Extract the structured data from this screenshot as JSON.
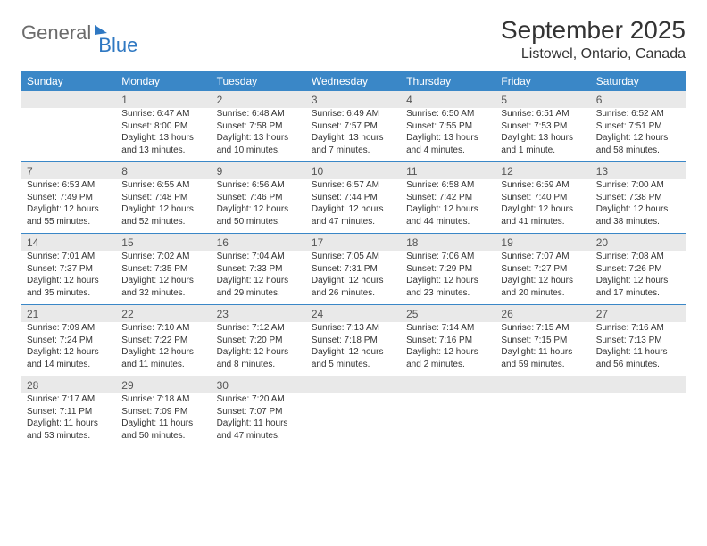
{
  "logo": {
    "part1": "General",
    "part2": "Blue"
  },
  "title": "September 2025",
  "location": "Listowel, Ontario, Canada",
  "colors": {
    "header_bg": "#3a87c7",
    "header_text": "#ffffff",
    "daynum_bg": "#e9e9e9",
    "rule": "#3a87c7",
    "logo_gray": "#6b6b6b",
    "logo_blue": "#2f78c2"
  },
  "daysOfWeek": [
    "Sunday",
    "Monday",
    "Tuesday",
    "Wednesday",
    "Thursday",
    "Friday",
    "Saturday"
  ],
  "weeks": [
    [
      null,
      {
        "n": "1",
        "sr": "Sunrise: 6:47 AM",
        "ss": "Sunset: 8:00 PM",
        "d1": "Daylight: 13 hours",
        "d2": "and 13 minutes."
      },
      {
        "n": "2",
        "sr": "Sunrise: 6:48 AM",
        "ss": "Sunset: 7:58 PM",
        "d1": "Daylight: 13 hours",
        "d2": "and 10 minutes."
      },
      {
        "n": "3",
        "sr": "Sunrise: 6:49 AM",
        "ss": "Sunset: 7:57 PM",
        "d1": "Daylight: 13 hours",
        "d2": "and 7 minutes."
      },
      {
        "n": "4",
        "sr": "Sunrise: 6:50 AM",
        "ss": "Sunset: 7:55 PM",
        "d1": "Daylight: 13 hours",
        "d2": "and 4 minutes."
      },
      {
        "n": "5",
        "sr": "Sunrise: 6:51 AM",
        "ss": "Sunset: 7:53 PM",
        "d1": "Daylight: 13 hours",
        "d2": "and 1 minute."
      },
      {
        "n": "6",
        "sr": "Sunrise: 6:52 AM",
        "ss": "Sunset: 7:51 PM",
        "d1": "Daylight: 12 hours",
        "d2": "and 58 minutes."
      }
    ],
    [
      {
        "n": "7",
        "sr": "Sunrise: 6:53 AM",
        "ss": "Sunset: 7:49 PM",
        "d1": "Daylight: 12 hours",
        "d2": "and 55 minutes."
      },
      {
        "n": "8",
        "sr": "Sunrise: 6:55 AM",
        "ss": "Sunset: 7:48 PM",
        "d1": "Daylight: 12 hours",
        "d2": "and 52 minutes."
      },
      {
        "n": "9",
        "sr": "Sunrise: 6:56 AM",
        "ss": "Sunset: 7:46 PM",
        "d1": "Daylight: 12 hours",
        "d2": "and 50 minutes."
      },
      {
        "n": "10",
        "sr": "Sunrise: 6:57 AM",
        "ss": "Sunset: 7:44 PM",
        "d1": "Daylight: 12 hours",
        "d2": "and 47 minutes."
      },
      {
        "n": "11",
        "sr": "Sunrise: 6:58 AM",
        "ss": "Sunset: 7:42 PM",
        "d1": "Daylight: 12 hours",
        "d2": "and 44 minutes."
      },
      {
        "n": "12",
        "sr": "Sunrise: 6:59 AM",
        "ss": "Sunset: 7:40 PM",
        "d1": "Daylight: 12 hours",
        "d2": "and 41 minutes."
      },
      {
        "n": "13",
        "sr": "Sunrise: 7:00 AM",
        "ss": "Sunset: 7:38 PM",
        "d1": "Daylight: 12 hours",
        "d2": "and 38 minutes."
      }
    ],
    [
      {
        "n": "14",
        "sr": "Sunrise: 7:01 AM",
        "ss": "Sunset: 7:37 PM",
        "d1": "Daylight: 12 hours",
        "d2": "and 35 minutes."
      },
      {
        "n": "15",
        "sr": "Sunrise: 7:02 AM",
        "ss": "Sunset: 7:35 PM",
        "d1": "Daylight: 12 hours",
        "d2": "and 32 minutes."
      },
      {
        "n": "16",
        "sr": "Sunrise: 7:04 AM",
        "ss": "Sunset: 7:33 PM",
        "d1": "Daylight: 12 hours",
        "d2": "and 29 minutes."
      },
      {
        "n": "17",
        "sr": "Sunrise: 7:05 AM",
        "ss": "Sunset: 7:31 PM",
        "d1": "Daylight: 12 hours",
        "d2": "and 26 minutes."
      },
      {
        "n": "18",
        "sr": "Sunrise: 7:06 AM",
        "ss": "Sunset: 7:29 PM",
        "d1": "Daylight: 12 hours",
        "d2": "and 23 minutes."
      },
      {
        "n": "19",
        "sr": "Sunrise: 7:07 AM",
        "ss": "Sunset: 7:27 PM",
        "d1": "Daylight: 12 hours",
        "d2": "and 20 minutes."
      },
      {
        "n": "20",
        "sr": "Sunrise: 7:08 AM",
        "ss": "Sunset: 7:26 PM",
        "d1": "Daylight: 12 hours",
        "d2": "and 17 minutes."
      }
    ],
    [
      {
        "n": "21",
        "sr": "Sunrise: 7:09 AM",
        "ss": "Sunset: 7:24 PM",
        "d1": "Daylight: 12 hours",
        "d2": "and 14 minutes."
      },
      {
        "n": "22",
        "sr": "Sunrise: 7:10 AM",
        "ss": "Sunset: 7:22 PM",
        "d1": "Daylight: 12 hours",
        "d2": "and 11 minutes."
      },
      {
        "n": "23",
        "sr": "Sunrise: 7:12 AM",
        "ss": "Sunset: 7:20 PM",
        "d1": "Daylight: 12 hours",
        "d2": "and 8 minutes."
      },
      {
        "n": "24",
        "sr": "Sunrise: 7:13 AM",
        "ss": "Sunset: 7:18 PM",
        "d1": "Daylight: 12 hours",
        "d2": "and 5 minutes."
      },
      {
        "n": "25",
        "sr": "Sunrise: 7:14 AM",
        "ss": "Sunset: 7:16 PM",
        "d1": "Daylight: 12 hours",
        "d2": "and 2 minutes."
      },
      {
        "n": "26",
        "sr": "Sunrise: 7:15 AM",
        "ss": "Sunset: 7:15 PM",
        "d1": "Daylight: 11 hours",
        "d2": "and 59 minutes."
      },
      {
        "n": "27",
        "sr": "Sunrise: 7:16 AM",
        "ss": "Sunset: 7:13 PM",
        "d1": "Daylight: 11 hours",
        "d2": "and 56 minutes."
      }
    ],
    [
      {
        "n": "28",
        "sr": "Sunrise: 7:17 AM",
        "ss": "Sunset: 7:11 PM",
        "d1": "Daylight: 11 hours",
        "d2": "and 53 minutes."
      },
      {
        "n": "29",
        "sr": "Sunrise: 7:18 AM",
        "ss": "Sunset: 7:09 PM",
        "d1": "Daylight: 11 hours",
        "d2": "and 50 minutes."
      },
      {
        "n": "30",
        "sr": "Sunrise: 7:20 AM",
        "ss": "Sunset: 7:07 PM",
        "d1": "Daylight: 11 hours",
        "d2": "and 47 minutes."
      },
      null,
      null,
      null,
      null
    ]
  ]
}
